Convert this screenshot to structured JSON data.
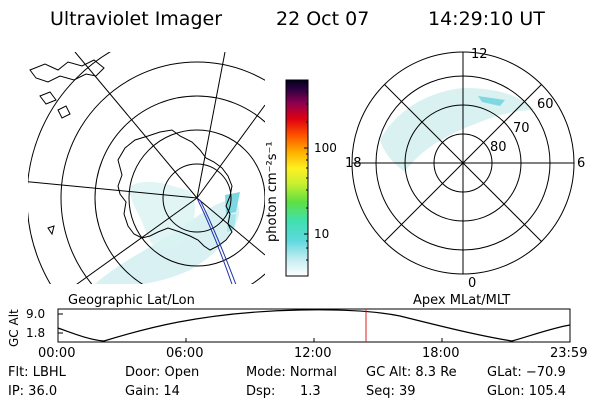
{
  "header": {
    "instrument": "Ultraviolet Imager",
    "date": "22 Oct 07",
    "time": "14:29:10 UT"
  },
  "colorbar": {
    "unit_label": "photon cm⁻²s⁻¹",
    "ticks": [
      "100",
      "10"
    ],
    "scale": "log"
  },
  "left_panel": {
    "caption": "Geographic Lat/Lon"
  },
  "right_panel": {
    "caption": "Apex MLat/MLT",
    "mlt_labels": {
      "top": "12",
      "left": "18",
      "right": "6",
      "bottom": "0"
    },
    "mlat_labels": [
      "60",
      "70",
      "80"
    ]
  },
  "altitude_plot": {
    "ylabel": "GC Alt",
    "yticks": [
      "9.0",
      "1.8"
    ],
    "xticks": [
      "00:00",
      "06:00",
      "12:00",
      "18:00",
      "23:59"
    ],
    "marker_color": "#dd2222"
  },
  "footer": {
    "filter": "Flt: LBHL",
    "door": "Door: Open",
    "mode": "Mode: Normal",
    "gc_alt": "GC Alt: 8.3 Re",
    "glat": "GLat: −70.9",
    "ip": "IP: 36.0",
    "gain": "Gain: 14",
    "dsp_label": "Dsp:",
    "dsp_value": "1.3",
    "seq": "Seq: 39",
    "glon": "GLon: 105.4"
  }
}
